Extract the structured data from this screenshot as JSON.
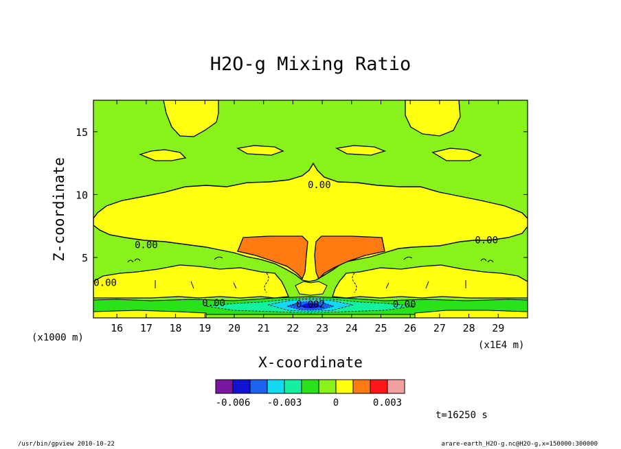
{
  "chart_data": {
    "type": "heatmap",
    "title": "H2O-g Mixing Ratio",
    "xlabel": "X-coordinate",
    "ylabel": "Z-coordinate",
    "x_unit": "(x1E4 m)",
    "y_unit": "(x1000 m)",
    "xlim": [
      15.2,
      30.0
    ],
    "ylim": [
      0.2,
      17.5
    ],
    "x_ticks": [
      16,
      17,
      18,
      19,
      20,
      21,
      22,
      23,
      24,
      25,
      26,
      27,
      28,
      29
    ],
    "y_ticks": [
      5,
      10,
      15
    ],
    "contour_labels": [
      {
        "text": "0.00",
        "x": 22.9,
        "z": 10.8
      },
      {
        "text": "0.00",
        "x": 17.0,
        "z": 6.0
      },
      {
        "text": "0.00",
        "x": 28.6,
        "z": 6.4
      },
      {
        "text": "0.00",
        "x": 15.6,
        "z": 3.0
      },
      {
        "text": "0.00",
        "x": 19.3,
        "z": 1.4
      },
      {
        "text": "0.00",
        "x": 25.8,
        "z": 1.3
      },
      {
        "text": "-0.002",
        "x": 22.5,
        "z": 1.3
      }
    ],
    "colorbar": {
      "colors": [
        "#7a16a0",
        "#1212d2",
        "#1a64f0",
        "#12d8f2",
        "#12f0a0",
        "#2ae21a",
        "#88f21a",
        "#ffff10",
        "#ff7a10",
        "#ff1818",
        "#f4a0a0"
      ],
      "tick_labels": [
        "-0.006",
        "-0.003",
        "0",
        "0.003"
      ],
      "tick_values": [
        -0.006,
        -0.003,
        0,
        0.003
      ]
    },
    "colors": {
      "background": "#88f21a",
      "positive_weak": "#ffff10",
      "positive_strong": "#ff7a10",
      "negative_weak": "#2ae21a",
      "negative_mid": "#12f0a0",
      "negative_strong": "#12d8f2",
      "negative_max": "#1a64f0",
      "negative_peak": "#1212d2"
    },
    "time_label": "t=16250 s"
  },
  "footer": {
    "left": "/usr/bin/gpview  2010-10-22",
    "right": "arare-earth_H2O-g.nc@H2O-g,x=150000:300000"
  }
}
